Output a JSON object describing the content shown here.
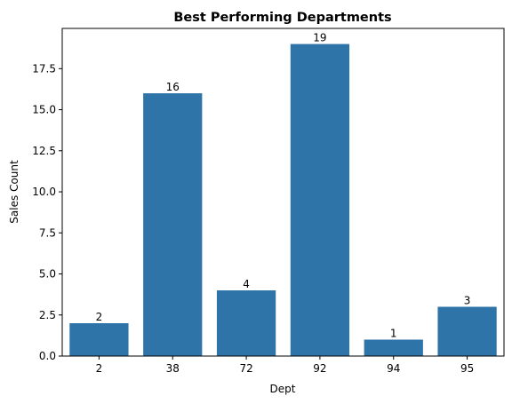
{
  "chart_data": {
    "type": "bar",
    "title": "Best Performing Departments",
    "xlabel": "Dept",
    "ylabel": "Sales Count",
    "categories": [
      "2",
      "38",
      "72",
      "92",
      "94",
      "95"
    ],
    "values": [
      2,
      16,
      4,
      19,
      1,
      3
    ],
    "data_labels": [
      "2",
      "16",
      "4",
      "19",
      "1",
      "3"
    ],
    "ylim": [
      0,
      19.95
    ],
    "yticks": [
      0.0,
      2.5,
      5.0,
      7.5,
      10.0,
      12.5,
      15.0,
      17.5
    ],
    "ytick_labels": [
      "0.0",
      "2.5",
      "5.0",
      "7.5",
      "10.0",
      "12.5",
      "15.0",
      "17.5"
    ],
    "grid": false,
    "bar_color": "#2f74a9"
  }
}
